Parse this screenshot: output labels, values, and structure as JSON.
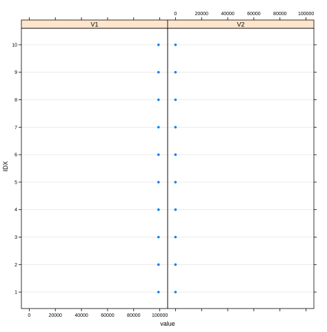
{
  "chart_data": {
    "type": "scatter",
    "xlabel": "value",
    "ylabel": "IDX",
    "panels": [
      {
        "name": "V1",
        "x": [
          99000,
          99000,
          99000,
          99000,
          99000,
          99000,
          99000,
          99000,
          99000,
          99000
        ],
        "y": [
          1,
          2,
          3,
          4,
          5,
          6,
          7,
          8,
          9,
          10
        ]
      },
      {
        "name": "V2",
        "x": [
          0,
          0,
          0,
          0,
          0,
          0,
          0,
          0,
          0,
          0
        ],
        "y": [
          1,
          2,
          3,
          4,
          5,
          6,
          7,
          8,
          9,
          10
        ]
      }
    ],
    "x_ticks": [
      0,
      20000,
      40000,
      60000,
      80000,
      100000
    ],
    "x_tick_labels": [
      "0",
      "20000",
      "40000",
      "60000",
      "80000",
      "100000"
    ],
    "y_ticks": [
      1,
      2,
      3,
      4,
      5,
      6,
      7,
      8,
      9,
      10
    ],
    "y_tick_labels": [
      "1",
      "2",
      "3",
      "4",
      "5",
      "6",
      "7",
      "8",
      "9",
      "10"
    ],
    "xlim": [
      -6000,
      106000
    ],
    "ylim": [
      0.4,
      10.6
    ],
    "grid": true,
    "colors": {
      "point": "#0080ff",
      "strip_fill": "#ffe5cc",
      "grid": "#e6e6e6",
      "frame": "#000000"
    }
  }
}
